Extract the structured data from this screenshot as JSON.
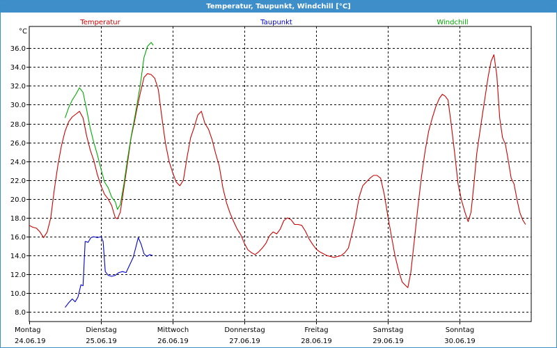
{
  "window": {
    "title": "Temperatur, Taupunkt, Windchill [°C]"
  },
  "chart_data": {
    "type": "line",
    "title": "Temperatur, Taupunkt, Windchill [°C]",
    "ylabel": "°C",
    "ylim": [
      7.0,
      38.3
    ],
    "yticks": [
      8.0,
      10.0,
      12.0,
      14.0,
      16.0,
      18.0,
      20.0,
      22.0,
      24.0,
      26.0,
      28.0,
      30.0,
      32.0,
      34.0,
      36.0
    ],
    "ytick_labels": [
      "8.0",
      "10.0",
      "12.0",
      "14.0",
      "16.0",
      "18.0",
      "20.0",
      "22.0",
      "24.0",
      "26.0",
      "28.0",
      "30.0",
      "32.0",
      "34.0",
      "36.0"
    ],
    "xlim": [
      0,
      7
    ],
    "x_unit": "days since Montag 24.06.19 00:00",
    "xticks": [
      {
        "day": "Montag",
        "date": "24.06.19",
        "x": 0
      },
      {
        "day": "Dienstag",
        "date": "25.06.19",
        "x": 1
      },
      {
        "day": "Mittwoch",
        "date": "26.06.19",
        "x": 2
      },
      {
        "day": "Donnerstag",
        "date": "27.06.19",
        "x": 3
      },
      {
        "day": "Freitag",
        "date": "28.06.19",
        "x": 4
      },
      {
        "day": "Samstag",
        "date": "29.06.19",
        "x": 5
      },
      {
        "day": "Sonntag",
        "date": "30.06.19",
        "x": 6
      }
    ],
    "grid": true,
    "legend_position": "top",
    "series": [
      {
        "name": "Temperatur",
        "color": "#cc0000",
        "points": [
          [
            0.0,
            17.2
          ],
          [
            0.05,
            17.0
          ],
          [
            0.1,
            16.9
          ],
          [
            0.15,
            16.5
          ],
          [
            0.2,
            15.9
          ],
          [
            0.25,
            16.5
          ],
          [
            0.3,
            18.0
          ],
          [
            0.35,
            21.0
          ],
          [
            0.4,
            23.6
          ],
          [
            0.45,
            25.7
          ],
          [
            0.5,
            27.2
          ],
          [
            0.55,
            28.2
          ],
          [
            0.6,
            28.7
          ],
          [
            0.65,
            29.0
          ],
          [
            0.7,
            29.3
          ],
          [
            0.75,
            28.6
          ],
          [
            0.8,
            26.7
          ],
          [
            0.85,
            25.2
          ],
          [
            0.9,
            24.1
          ],
          [
            0.95,
            22.6
          ],
          [
            1.0,
            21.4
          ],
          [
            1.05,
            20.5
          ],
          [
            1.1,
            20.0
          ],
          [
            1.15,
            19.3
          ],
          [
            1.2,
            18.0
          ],
          [
            1.23,
            17.9
          ],
          [
            1.27,
            18.6
          ],
          [
            1.32,
            21.2
          ],
          [
            1.37,
            23.8
          ],
          [
            1.42,
            26.5
          ],
          [
            1.47,
            28.3
          ],
          [
            1.5,
            29.5
          ],
          [
            1.55,
            31.3
          ],
          [
            1.6,
            32.9
          ],
          [
            1.65,
            33.3
          ],
          [
            1.7,
            33.2
          ],
          [
            1.75,
            32.8
          ],
          [
            1.8,
            31.6
          ],
          [
            1.85,
            28.6
          ],
          [
            1.9,
            25.9
          ],
          [
            1.95,
            24.0
          ],
          [
            2.0,
            22.8
          ],
          [
            2.05,
            21.8
          ],
          [
            2.1,
            21.4
          ],
          [
            2.15,
            22.0
          ],
          [
            2.2,
            24.4
          ],
          [
            2.25,
            26.5
          ],
          [
            2.3,
            27.6
          ],
          [
            2.35,
            28.9
          ],
          [
            2.4,
            29.3
          ],
          [
            2.45,
            28.0
          ],
          [
            2.5,
            27.4
          ],
          [
            2.55,
            26.3
          ],
          [
            2.6,
            24.8
          ],
          [
            2.65,
            23.5
          ],
          [
            2.7,
            21.2
          ],
          [
            2.75,
            19.6
          ],
          [
            2.8,
            18.5
          ],
          [
            2.85,
            17.6
          ],
          [
            2.9,
            16.8
          ],
          [
            2.95,
            16.2
          ],
          [
            3.0,
            15.3
          ],
          [
            3.05,
            14.6
          ],
          [
            3.1,
            14.3
          ],
          [
            3.15,
            14.1
          ],
          [
            3.2,
            14.4
          ],
          [
            3.25,
            14.8
          ],
          [
            3.3,
            15.3
          ],
          [
            3.35,
            16.1
          ],
          [
            3.4,
            16.5
          ],
          [
            3.45,
            16.3
          ],
          [
            3.5,
            16.8
          ],
          [
            3.55,
            17.7
          ],
          [
            3.6,
            18.0
          ],
          [
            3.65,
            17.8
          ],
          [
            3.7,
            17.3
          ],
          [
            3.75,
            17.3
          ],
          [
            3.8,
            17.2
          ],
          [
            3.85,
            16.6
          ],
          [
            3.9,
            15.8
          ],
          [
            3.95,
            15.2
          ],
          [
            4.0,
            14.7
          ],
          [
            4.05,
            14.4
          ],
          [
            4.1,
            14.2
          ],
          [
            4.15,
            14.0
          ],
          [
            4.2,
            13.9
          ],
          [
            4.25,
            13.8
          ],
          [
            4.3,
            13.9
          ],
          [
            4.35,
            14.0
          ],
          [
            4.4,
            14.3
          ],
          [
            4.45,
            14.8
          ],
          [
            4.5,
            16.3
          ],
          [
            4.55,
            18.0
          ],
          [
            4.6,
            20.2
          ],
          [
            4.65,
            21.4
          ],
          [
            4.7,
            21.8
          ],
          [
            4.75,
            22.2
          ],
          [
            4.8,
            22.5
          ],
          [
            4.85,
            22.5
          ],
          [
            4.9,
            22.2
          ],
          [
            4.95,
            20.5
          ],
          [
            5.0,
            18.2
          ],
          [
            5.05,
            16.1
          ],
          [
            5.1,
            14.0
          ],
          [
            5.15,
            12.4
          ],
          [
            5.2,
            11.2
          ],
          [
            5.25,
            10.8
          ],
          [
            5.28,
            10.6
          ],
          [
            5.32,
            12.2
          ],
          [
            5.37,
            15.6
          ],
          [
            5.42,
            19.2
          ],
          [
            5.47,
            22.4
          ],
          [
            5.52,
            25.1
          ],
          [
            5.57,
            27.2
          ],
          [
            5.62,
            28.6
          ],
          [
            5.67,
            29.8
          ],
          [
            5.72,
            30.7
          ],
          [
            5.76,
            31.1
          ],
          [
            5.8,
            30.9
          ],
          [
            5.84,
            30.5
          ],
          [
            5.88,
            28.2
          ],
          [
            5.93,
            25.0
          ],
          [
            5.98,
            21.6
          ],
          [
            6.03,
            19.8
          ],
          [
            6.08,
            18.5
          ],
          [
            6.12,
            17.6
          ],
          [
            6.16,
            18.6
          ],
          [
            6.2,
            21.5
          ],
          [
            6.24,
            24.8
          ],
          [
            6.28,
            26.9
          ],
          [
            6.32,
            29.0
          ],
          [
            6.36,
            31.0
          ],
          [
            6.4,
            33.0
          ],
          [
            6.44,
            34.6
          ],
          [
            6.48,
            35.3
          ],
          [
            6.52,
            33.1
          ],
          [
            6.56,
            28.6
          ],
          [
            6.6,
            26.5
          ],
          [
            6.64,
            25.8
          ],
          [
            6.68,
            24.1
          ],
          [
            6.72,
            22.2
          ],
          [
            6.76,
            21.6
          ],
          [
            6.8,
            20.0
          ],
          [
            6.84,
            18.6
          ],
          [
            6.88,
            17.8
          ],
          [
            6.92,
            17.3
          ]
        ]
      },
      {
        "name": "Taupunkt",
        "color": "#0000cc",
        "points": [
          [
            0.5,
            8.5
          ],
          [
            0.55,
            9.0
          ],
          [
            0.6,
            9.4
          ],
          [
            0.64,
            9.1
          ],
          [
            0.68,
            9.6
          ],
          [
            0.72,
            10.9
          ],
          [
            0.75,
            10.8
          ],
          [
            0.78,
            15.5
          ],
          [
            0.82,
            15.4
          ],
          [
            0.86,
            15.9
          ],
          [
            0.9,
            16.0
          ],
          [
            0.95,
            15.9
          ],
          [
            1.0,
            16.0
          ],
          [
            1.03,
            15.5
          ],
          [
            1.06,
            12.3
          ],
          [
            1.1,
            11.9
          ],
          [
            1.15,
            11.8
          ],
          [
            1.2,
            11.9
          ],
          [
            1.25,
            12.2
          ],
          [
            1.3,
            12.3
          ],
          [
            1.35,
            12.2
          ],
          [
            1.4,
            13.0
          ],
          [
            1.45,
            13.8
          ],
          [
            1.49,
            15.0
          ],
          [
            1.52,
            15.9
          ],
          [
            1.56,
            15.2
          ],
          [
            1.6,
            14.2
          ],
          [
            1.64,
            13.9
          ],
          [
            1.68,
            14.1
          ],
          [
            1.72,
            14.0
          ]
        ]
      },
      {
        "name": "Windchill",
        "color": "#00aa00",
        "points": [
          [
            0.5,
            28.6
          ],
          [
            0.55,
            29.7
          ],
          [
            0.6,
            30.5
          ],
          [
            0.65,
            31.1
          ],
          [
            0.7,
            31.8
          ],
          [
            0.75,
            31.3
          ],
          [
            0.8,
            29.5
          ],
          [
            0.85,
            27.5
          ],
          [
            0.9,
            26.0
          ],
          [
            0.95,
            24.7
          ],
          [
            1.0,
            23.2
          ],
          [
            1.05,
            21.8
          ],
          [
            1.1,
            21.2
          ],
          [
            1.15,
            20.2
          ],
          [
            1.2,
            19.7
          ],
          [
            1.23,
            18.9
          ],
          [
            1.27,
            19.4
          ],
          [
            1.32,
            21.6
          ],
          [
            1.37,
            24.2
          ],
          [
            1.42,
            26.6
          ],
          [
            1.47,
            28.6
          ],
          [
            1.5,
            29.9
          ],
          [
            1.55,
            32.2
          ],
          [
            1.6,
            35.0
          ],
          [
            1.65,
            36.2
          ],
          [
            1.7,
            36.6
          ],
          [
            1.73,
            36.3
          ]
        ]
      }
    ]
  }
}
